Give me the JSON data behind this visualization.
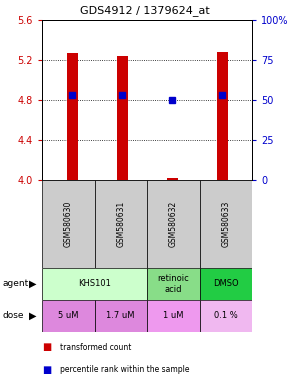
{
  "title": "GDS4912 / 1379624_at",
  "samples": [
    "GSM580630",
    "GSM580631",
    "GSM580632",
    "GSM580633"
  ],
  "bar_values": [
    5.27,
    5.24,
    4.02,
    5.28
  ],
  "bar_base": 4.0,
  "blue_dot_values": [
    4.85,
    4.85,
    4.8,
    4.85
  ],
  "ylim": [
    4.0,
    5.6
  ],
  "yticks_left": [
    4.0,
    4.4,
    4.8,
    5.2,
    5.6
  ],
  "yticks_right": [
    0,
    25,
    50,
    75,
    100
  ],
  "y_right_labels": [
    "0",
    "25",
    "50",
    "75",
    "100%"
  ],
  "bar_color": "#cc0000",
  "dot_color": "#0000cc",
  "agent_row": [
    {
      "label": "KHS101",
      "color": "#ccffcc",
      "span": [
        0,
        2
      ]
    },
    {
      "label": "retinoic\nacid",
      "color": "#88dd88",
      "span": [
        2,
        3
      ]
    },
    {
      "label": "DMSO",
      "color": "#22cc44",
      "span": [
        3,
        4
      ]
    }
  ],
  "dose_row": [
    {
      "label": "5 uM",
      "color": "#dd88dd",
      "span": [
        0,
        1
      ]
    },
    {
      "label": "1.7 uM",
      "color": "#dd88dd",
      "span": [
        1,
        2
      ]
    },
    {
      "label": "1 uM",
      "color": "#ee99ee",
      "span": [
        2,
        3
      ]
    },
    {
      "label": "0.1 %",
      "color": "#f0b8f0",
      "span": [
        3,
        4
      ]
    }
  ],
  "legend_bar_color": "#cc0000",
  "legend_dot_color": "#0000cc",
  "legend_bar_label": "transformed count",
  "legend_dot_label": "percentile rank within the sample",
  "left_tick_color": "#cc0000",
  "right_tick_color": "#0000cc"
}
